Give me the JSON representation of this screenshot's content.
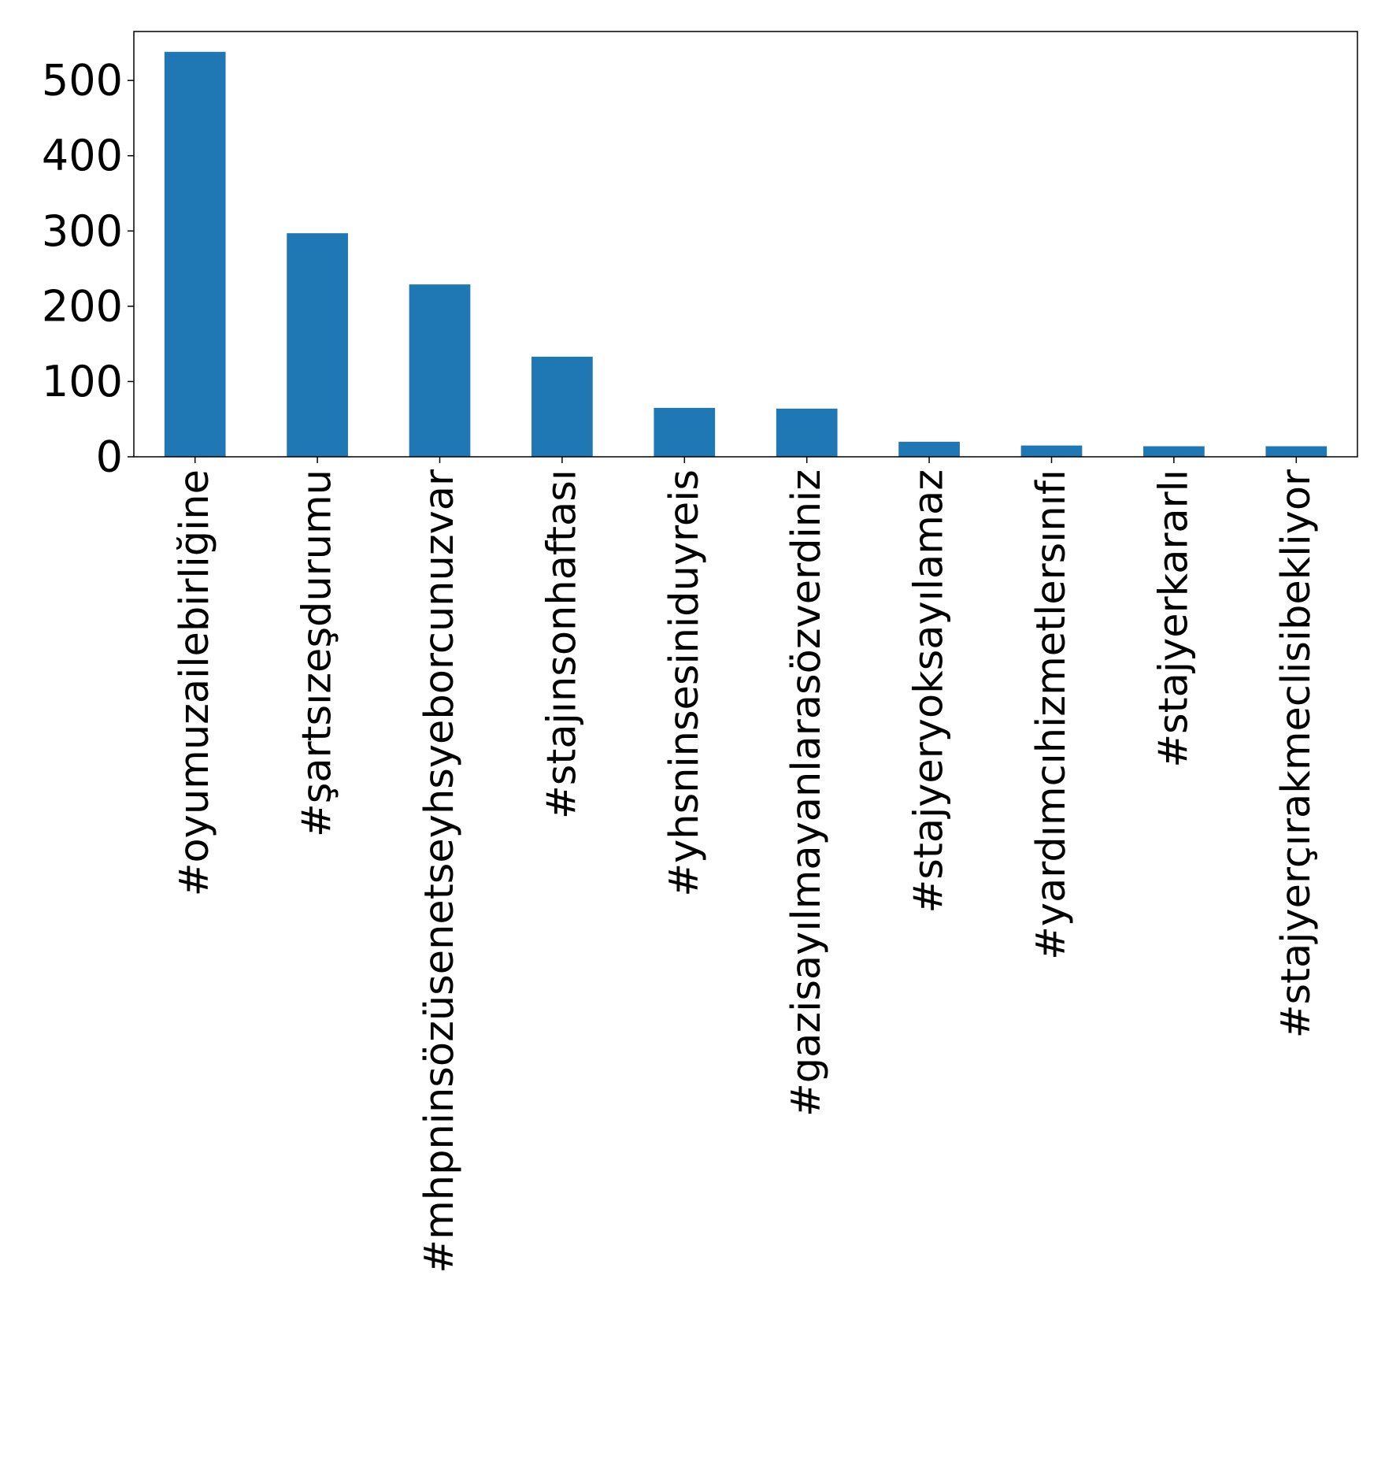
{
  "chart_data": {
    "type": "bar",
    "categories": [
      "#oyumuzailebirliğine",
      "#şartsızeşdurumu",
      "#mhpninsözüsenetseyhsyeborcunuzvar",
      "#stajınsonhaftası",
      "#yhsninsesiniduyreis",
      "#gazisayılmayanlarasözverdiniz",
      "#stajyeryoksayılamaz",
      "#yardımcıhizmetlersınıfı",
      "#stajyerkararlı",
      "#stajyerçırakmeclisibekliyor"
    ],
    "values": [
      538,
      297,
      229,
      133,
      65,
      64,
      20,
      15,
      14,
      14
    ],
    "ylim": [
      0,
      565
    ],
    "yticks": [
      0,
      100,
      200,
      300,
      400,
      500
    ],
    "title": "",
    "xlabel": "",
    "ylabel": "",
    "grid": false,
    "bar_color": "#1f77b4"
  }
}
